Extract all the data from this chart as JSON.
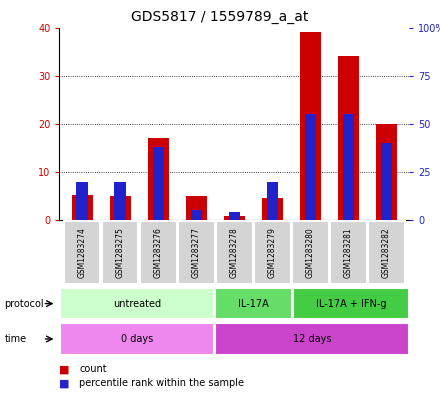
{
  "title": "GDS5817 / 1559789_a_at",
  "samples": [
    "GSM1283274",
    "GSM1283275",
    "GSM1283276",
    "GSM1283277",
    "GSM1283278",
    "GSM1283279",
    "GSM1283280",
    "GSM1283281",
    "GSM1283282"
  ],
  "count_values": [
    5.2,
    5.0,
    17.0,
    5.0,
    0.8,
    4.5,
    39.0,
    34.0,
    20.0
  ],
  "percentile_values": [
    20.0,
    20.0,
    38.0,
    5.0,
    4.0,
    20.0,
    55.0,
    55.0,
    40.0
  ],
  "left_ylim": [
    0,
    40
  ],
  "right_ylim": [
    0,
    100
  ],
  "left_yticks": [
    0,
    10,
    20,
    30,
    40
  ],
  "right_yticks": [
    0,
    25,
    50,
    75,
    100
  ],
  "left_yticklabels": [
    "0",
    "10",
    "20",
    "30",
    "40"
  ],
  "right_yticklabels": [
    "0",
    "25",
    "50",
    "75",
    "100%"
  ],
  "bar_color": "#cc0000",
  "percentile_color": "#2222cc",
  "bar_width": 0.55,
  "protocol_groups": [
    {
      "label": "untreated",
      "start": 0,
      "end": 4,
      "color": "#ccffcc"
    },
    {
      "label": "IL-17A",
      "start": 4,
      "end": 6,
      "color": "#66dd66"
    },
    {
      "label": "IL-17A + IFN-g",
      "start": 6,
      "end": 9,
      "color": "#44cc44"
    }
  ],
  "time_groups": [
    {
      "label": "0 days",
      "start": 0,
      "end": 4,
      "color": "#ee88ee"
    },
    {
      "label": "12 days",
      "start": 4,
      "end": 9,
      "color": "#cc44cc"
    }
  ],
  "legend_count_color": "#cc0000",
  "legend_percentile_color": "#2222cc",
  "title_fontsize": 10,
  "tick_fontsize": 7,
  "sample_fontsize": 5.5,
  "row_fontsize": 7,
  "legend_fontsize": 7
}
